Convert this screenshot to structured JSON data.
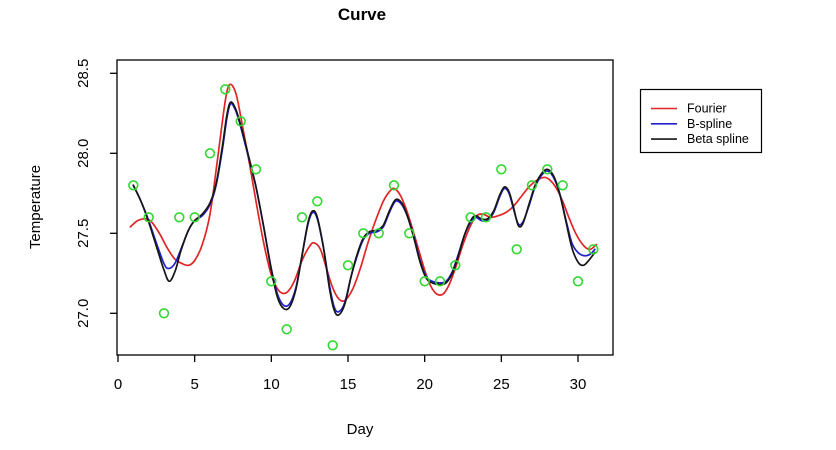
{
  "chart_data": {
    "type": "scatter+line",
    "title": "Curve",
    "xlabel": "Day",
    "ylabel": "Temperature",
    "xlim": [
      -0.2,
      32.3
    ],
    "ylim": [
      26.74,
      28.58
    ],
    "grid": false,
    "x_ticks": [
      0,
      5,
      10,
      15,
      20,
      25,
      30
    ],
    "y_ticks": [
      27.0,
      27.5,
      28.0,
      28.5
    ],
    "points": {
      "name": "observed-temperature",
      "marker": "open-circle",
      "color": "#33d633",
      "days": [
        1,
        2,
        3,
        4,
        5,
        6,
        7,
        8,
        9,
        10,
        11,
        12,
        13,
        14,
        15,
        16,
        17,
        18,
        19,
        20,
        21,
        22,
        23,
        24,
        25,
        26,
        27,
        28,
        29,
        30,
        31
      ],
      "temps": [
        27.8,
        27.6,
        27.0,
        27.6,
        27.6,
        28.0,
        28.4,
        28.2,
        27.9,
        27.2,
        26.9,
        27.6,
        27.7,
        26.8,
        27.3,
        27.5,
        27.5,
        27.8,
        27.5,
        27.2,
        27.2,
        27.3,
        27.6,
        27.6,
        27.9,
        27.4,
        27.8,
        27.9,
        27.8,
        27.2,
        27.4
      ]
    },
    "series": [
      {
        "name": "Fourier",
        "color": "#e02525",
        "samples": [
          [
            0.8,
            27.54
          ],
          [
            1.3,
            27.58
          ],
          [
            1.8,
            27.59
          ],
          [
            2.2,
            27.57
          ],
          [
            2.7,
            27.5
          ],
          [
            3.2,
            27.41
          ],
          [
            3.7,
            27.34
          ],
          [
            4.2,
            27.31
          ],
          [
            4.6,
            27.3
          ],
          [
            5.0,
            27.33
          ],
          [
            5.5,
            27.43
          ],
          [
            6.0,
            27.62
          ],
          [
            6.5,
            27.97
          ],
          [
            7.0,
            28.33
          ],
          [
            7.3,
            28.43
          ],
          [
            7.7,
            28.37
          ],
          [
            8.1,
            28.18
          ],
          [
            8.6,
            27.92
          ],
          [
            9.0,
            27.7
          ],
          [
            9.5,
            27.44
          ],
          [
            10.0,
            27.24
          ],
          [
            10.5,
            27.14
          ],
          [
            11.0,
            27.13
          ],
          [
            11.5,
            27.2
          ],
          [
            12.0,
            27.33
          ],
          [
            12.5,
            27.42
          ],
          [
            12.8,
            27.44
          ],
          [
            13.2,
            27.4
          ],
          [
            13.6,
            27.28
          ],
          [
            14.0,
            27.16
          ],
          [
            14.4,
            27.09
          ],
          [
            14.8,
            27.08
          ],
          [
            15.3,
            27.15
          ],
          [
            15.8,
            27.28
          ],
          [
            16.3,
            27.44
          ],
          [
            16.8,
            27.58
          ],
          [
            17.3,
            27.7
          ],
          [
            17.7,
            27.76
          ],
          [
            18.0,
            27.78
          ],
          [
            18.4,
            27.74
          ],
          [
            18.8,
            27.65
          ],
          [
            19.2,
            27.53
          ],
          [
            19.6,
            27.4
          ],
          [
            20.0,
            27.27
          ],
          [
            20.4,
            27.17
          ],
          [
            20.8,
            27.12
          ],
          [
            21.2,
            27.12
          ],
          [
            21.6,
            27.18
          ],
          [
            22.0,
            27.28
          ],
          [
            22.5,
            27.43
          ],
          [
            23.0,
            27.55
          ],
          [
            23.4,
            27.61
          ],
          [
            23.8,
            27.62
          ],
          [
            24.3,
            27.6
          ],
          [
            24.8,
            27.61
          ],
          [
            25.3,
            27.63
          ],
          [
            25.8,
            27.67
          ],
          [
            26.3,
            27.73
          ],
          [
            26.8,
            27.79
          ],
          [
            27.3,
            27.83
          ],
          [
            27.8,
            27.85
          ],
          [
            28.2,
            27.83
          ],
          [
            28.6,
            27.78
          ],
          [
            29.0,
            27.7
          ],
          [
            29.4,
            27.6
          ],
          [
            29.9,
            27.49
          ],
          [
            30.4,
            27.42
          ],
          [
            30.8,
            27.4
          ],
          [
            31.2,
            27.43
          ]
        ]
      },
      {
        "name": "B-spline",
        "color": "#2222cc",
        "samples": [
          [
            1.0,
            27.8
          ],
          [
            1.5,
            27.7
          ],
          [
            2.0,
            27.58
          ],
          [
            2.5,
            27.44
          ],
          [
            3.0,
            27.31
          ],
          [
            3.3,
            27.28
          ],
          [
            3.7,
            27.31
          ],
          [
            4.1,
            27.4
          ],
          [
            4.6,
            27.52
          ],
          [
            5.0,
            27.58
          ],
          [
            5.5,
            27.61
          ],
          [
            6.0,
            27.68
          ],
          [
            6.4,
            27.8
          ],
          [
            6.8,
            28.02
          ],
          [
            7.1,
            28.22
          ],
          [
            7.35,
            28.31
          ],
          [
            7.7,
            28.26
          ],
          [
            8.1,
            28.13
          ],
          [
            8.5,
            27.98
          ],
          [
            9.0,
            27.79
          ],
          [
            9.5,
            27.54
          ],
          [
            10.0,
            27.28
          ],
          [
            10.4,
            27.12
          ],
          [
            10.8,
            27.05
          ],
          [
            11.2,
            27.06
          ],
          [
            11.6,
            27.16
          ],
          [
            12.0,
            27.36
          ],
          [
            12.4,
            27.56
          ],
          [
            12.7,
            27.63
          ],
          [
            13.0,
            27.59
          ],
          [
            13.4,
            27.41
          ],
          [
            13.8,
            27.17
          ],
          [
            14.1,
            27.04
          ],
          [
            14.4,
            27.01
          ],
          [
            14.8,
            27.07
          ],
          [
            15.2,
            27.23
          ],
          [
            15.6,
            27.36
          ],
          [
            16.0,
            27.46
          ],
          [
            16.4,
            27.5
          ],
          [
            16.9,
            27.51
          ],
          [
            17.3,
            27.54
          ],
          [
            17.7,
            27.63
          ],
          [
            18.1,
            27.7
          ],
          [
            18.5,
            27.68
          ],
          [
            18.9,
            27.6
          ],
          [
            19.3,
            27.48
          ],
          [
            19.7,
            27.33
          ],
          [
            20.1,
            27.23
          ],
          [
            20.5,
            27.2
          ],
          [
            21.0,
            27.19
          ],
          [
            21.4,
            27.2
          ],
          [
            21.8,
            27.26
          ],
          [
            22.2,
            27.37
          ],
          [
            22.6,
            27.49
          ],
          [
            23.0,
            27.57
          ],
          [
            23.3,
            27.6
          ],
          [
            23.7,
            27.58
          ],
          [
            24.1,
            27.58
          ],
          [
            24.5,
            27.63
          ],
          [
            24.9,
            27.73
          ],
          [
            25.2,
            27.78
          ],
          [
            25.5,
            27.75
          ],
          [
            25.8,
            27.65
          ],
          [
            26.1,
            27.56
          ],
          [
            26.4,
            27.57
          ],
          [
            26.8,
            27.67
          ],
          [
            27.2,
            27.79
          ],
          [
            27.6,
            27.86
          ],
          [
            28.0,
            27.89
          ],
          [
            28.4,
            27.85
          ],
          [
            28.8,
            27.75
          ],
          [
            29.2,
            27.59
          ],
          [
            29.6,
            27.44
          ],
          [
            30.0,
            27.38
          ],
          [
            30.4,
            27.36
          ],
          [
            30.8,
            27.37
          ],
          [
            31.1,
            27.4
          ]
        ]
      },
      {
        "name": "Beta spline",
        "color": "#161616",
        "samples": [
          [
            1.0,
            27.8
          ],
          [
            1.5,
            27.7
          ],
          [
            2.0,
            27.57
          ],
          [
            2.5,
            27.42
          ],
          [
            3.0,
            27.27
          ],
          [
            3.35,
            27.2
          ],
          [
            3.75,
            27.27
          ],
          [
            4.1,
            27.39
          ],
          [
            4.6,
            27.52
          ],
          [
            5.0,
            27.58
          ],
          [
            5.5,
            27.62
          ],
          [
            6.0,
            27.69
          ],
          [
            6.4,
            27.81
          ],
          [
            6.8,
            28.04
          ],
          [
            7.1,
            28.24
          ],
          [
            7.35,
            28.32
          ],
          [
            7.7,
            28.27
          ],
          [
            8.1,
            28.14
          ],
          [
            8.5,
            27.99
          ],
          [
            9.0,
            27.79
          ],
          [
            9.5,
            27.54
          ],
          [
            10.0,
            27.27
          ],
          [
            10.4,
            27.1
          ],
          [
            10.8,
            27.03
          ],
          [
            11.2,
            27.04
          ],
          [
            11.6,
            27.15
          ],
          [
            12.0,
            27.36
          ],
          [
            12.4,
            27.57
          ],
          [
            12.7,
            27.64
          ],
          [
            13.0,
            27.6
          ],
          [
            13.4,
            27.41
          ],
          [
            13.8,
            27.15
          ],
          [
            14.1,
            27.02
          ],
          [
            14.4,
            26.99
          ],
          [
            14.8,
            27.06
          ],
          [
            15.2,
            27.23
          ],
          [
            15.6,
            27.37
          ],
          [
            16.0,
            27.47
          ],
          [
            16.4,
            27.51
          ],
          [
            16.9,
            27.52
          ],
          [
            17.3,
            27.55
          ],
          [
            17.7,
            27.64
          ],
          [
            18.1,
            27.71
          ],
          [
            18.5,
            27.69
          ],
          [
            18.9,
            27.6
          ],
          [
            19.3,
            27.47
          ],
          [
            19.7,
            27.32
          ],
          [
            20.1,
            27.22
          ],
          [
            20.5,
            27.19
          ],
          [
            21.0,
            27.18
          ],
          [
            21.4,
            27.19
          ],
          [
            21.8,
            27.25
          ],
          [
            22.2,
            27.36
          ],
          [
            22.6,
            27.49
          ],
          [
            23.0,
            27.58
          ],
          [
            23.3,
            27.61
          ],
          [
            23.7,
            27.59
          ],
          [
            24.1,
            27.59
          ],
          [
            24.5,
            27.64
          ],
          [
            24.9,
            27.74
          ],
          [
            25.2,
            27.79
          ],
          [
            25.5,
            27.76
          ],
          [
            25.8,
            27.66
          ],
          [
            26.1,
            27.55
          ],
          [
            26.4,
            27.56
          ],
          [
            26.8,
            27.68
          ],
          [
            27.2,
            27.8
          ],
          [
            27.6,
            27.87
          ],
          [
            28.0,
            27.9
          ],
          [
            28.4,
            27.86
          ],
          [
            28.8,
            27.75
          ],
          [
            29.2,
            27.58
          ],
          [
            29.6,
            27.41
          ],
          [
            30.0,
            27.32
          ],
          [
            30.35,
            27.3
          ],
          [
            30.7,
            27.33
          ],
          [
            31.1,
            27.38
          ]
        ]
      }
    ],
    "legend": {
      "position": "right-outside",
      "items": [
        {
          "label": "Fourier",
          "color": "#e02525"
        },
        {
          "label": "B-spline",
          "color": "#2222cc"
        },
        {
          "label": "Beta spline",
          "color": "#161616"
        }
      ]
    }
  }
}
